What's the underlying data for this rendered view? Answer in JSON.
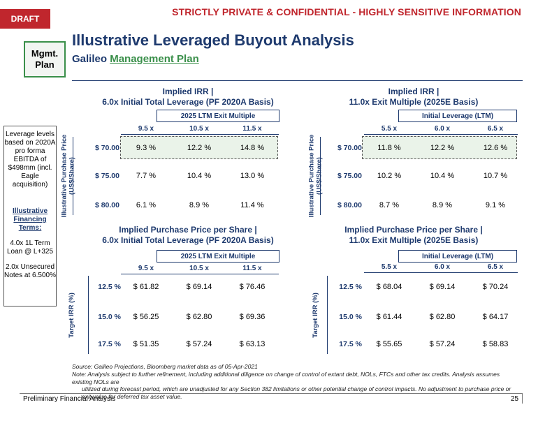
{
  "header": {
    "draft_label": "DRAFT",
    "confidential": "STRICTLY PRIVATE & CONFIDENTIAL - HIGHLY SENSITIVE INFORMATION",
    "badge": "Mgmt. Plan",
    "title": "Illustrative Leveraged Buyout Analysis",
    "subtitle_prefix": "Galileo",
    "subtitle_link": "Management Plan"
  },
  "sidebar": {
    "leverage_text": "Leverage levels based on 2020A pro forma EBITDA of $498mm (incl. Eagle acquisition)",
    "financing_heading": "Illustrative Financing Terms:",
    "term_loan": "4.0x 1L Term Loan @ L+325",
    "unsecured": "2.0x Unsecured Notes at 6.500%"
  },
  "panels": {
    "tl": {
      "title_line1": "Implied IRR |",
      "title_line2": "6.0x Initial Total Leverage (PF 2020A Basis)",
      "bar_label": "2025 LTM Exit Multiple",
      "col_headers": [
        "9.5 x",
        "10.5 x",
        "11.5 x"
      ],
      "axis_label_line1": "Illustrative Purchase Price",
      "axis_label_line2": "(US$/Share)",
      "rows": [
        {
          "label": "$ 70.00",
          "values": [
            "9.3 %",
            "12.2 %",
            "14.8 %"
          ]
        },
        {
          "label": "$ 75.00",
          "values": [
            "7.7 %",
            "10.4 %",
            "13.0 %"
          ]
        },
        {
          "label": "$ 80.00",
          "values": [
            "6.1 %",
            "8.9 %",
            "11.4 %"
          ]
        }
      ]
    },
    "tr": {
      "title_line1": "Implied IRR |",
      "title_line2": "11.0x Exit Multiple (2025E Basis)",
      "bar_label": "Initial Leverage (LTM)",
      "col_headers": [
        "5.5 x",
        "6.0 x",
        "6.5 x"
      ],
      "axis_label_line1": "Illustrative Purchase Price",
      "axis_label_line2": "(US$/Share)",
      "rows": [
        {
          "label": "$ 70.00",
          "values": [
            "11.8 %",
            "12.2 %",
            "12.6 %"
          ]
        },
        {
          "label": "$ 75.00",
          "values": [
            "10.2 %",
            "10.4 %",
            "10.7 %"
          ]
        },
        {
          "label": "$ 80.00",
          "values": [
            "8.7 %",
            "8.9 %",
            "9.1 %"
          ]
        }
      ]
    },
    "bl": {
      "title_line1": "Implied Purchase Price per Share |",
      "title_line2": "6.0x Initial Total Leverage (PF 2020A Basis)",
      "bar_label": "2025 LTM Exit Multiple",
      "col_headers": [
        "9.5 x",
        "10.5 x",
        "11.5 x"
      ],
      "axis_label_line1": "Target IRR (%)",
      "axis_label_line2": "",
      "rows": [
        {
          "label": "12.5 %",
          "values": [
            "$ 61.82",
            "$ 69.14",
            "$ 76.46"
          ]
        },
        {
          "label": "15.0 %",
          "values": [
            "$ 56.25",
            "$ 62.80",
            "$ 69.36"
          ]
        },
        {
          "label": "17.5 %",
          "values": [
            "$ 51.35",
            "$ 57.24",
            "$ 63.13"
          ]
        }
      ]
    },
    "br": {
      "title_line1": "Implied Purchase Price per Share |",
      "title_line2": "11.0x Exit Multiple (2025E Basis)",
      "bar_label": "Initial Leverage (LTM)",
      "col_headers": [
        "5.5 x",
        "6.0 x",
        "6.5 x"
      ],
      "axis_label_line1": "Target IRR (%)",
      "axis_label_line2": "",
      "rows": [
        {
          "label": "12.5 %",
          "values": [
            "$ 68.04",
            "$ 69.14",
            "$ 70.24"
          ]
        },
        {
          "label": "15.0 %",
          "values": [
            "$ 61.44",
            "$ 62.80",
            "$ 64.17"
          ]
        },
        {
          "label": "17.5 %",
          "values": [
            "$ 55.65",
            "$ 57.24",
            "$ 58.83"
          ]
        }
      ]
    }
  },
  "footer": {
    "source": "Source: Galileo Projections, Bloomberg market data as of 05-Apr-2021",
    "note_first": "Note: Analysis subject to further refinement, including additional diligence on change of control of extant debt, NOLs, FTCs and other tax credits. Analysis assumes existing NOLs are",
    "note_rest": "utilized during forecast period, which are unadjusted for any Section 382 limitations or other potential change of control impacts. No adjustment to purchase price or exit value for deferred tax asset value.",
    "left_label": "Preliminary Financial Analysis",
    "page_number": "25"
  }
}
